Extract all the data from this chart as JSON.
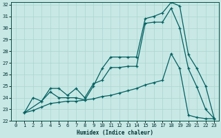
{
  "xlabel": "Humidex (Indice chaleur)",
  "bg_color": "#c8e8e5",
  "grid_color": "#aad4d0",
  "line_color": "#006060",
  "xlim": [
    -0.5,
    23.5
  ],
  "ylim": [
    22,
    32.2
  ],
  "yticks": [
    22,
    23,
    24,
    25,
    26,
    27,
    28,
    29,
    30,
    31,
    32
  ],
  "xticks": [
    0,
    1,
    2,
    3,
    4,
    5,
    6,
    7,
    8,
    9,
    10,
    11,
    12,
    13,
    14,
    15,
    16,
    17,
    18,
    19,
    20,
    21,
    22,
    23
  ],
  "line1_x": [
    1,
    2,
    3,
    4,
    5,
    6,
    7,
    8,
    9,
    10,
    11,
    12,
    13,
    14,
    15,
    16,
    17,
    18,
    19,
    20,
    21,
    22,
    23
  ],
  "line1_y": [
    22.7,
    24.0,
    23.7,
    24.8,
    24.8,
    24.2,
    24.8,
    24.0,
    25.2,
    25.5,
    26.6,
    26.6,
    26.7,
    26.7,
    30.4,
    30.5,
    30.5,
    31.7,
    30.0,
    26.5,
    24.9,
    23.0,
    22.2
  ],
  "line2_x": [
    1,
    3,
    4,
    5,
    6,
    7,
    8,
    9,
    10,
    11,
    12,
    13,
    14,
    15,
    16,
    17,
    18,
    19,
    20,
    21,
    22,
    23
  ],
  "line2_y": [
    22.7,
    23.7,
    24.5,
    24.0,
    24.0,
    24.0,
    23.8,
    25.0,
    26.5,
    27.5,
    27.5,
    27.5,
    27.5,
    30.8,
    31.0,
    31.3,
    32.2,
    31.9,
    27.7,
    26.5,
    25.0,
    22.2
  ],
  "line3_x": [
    1,
    2,
    3,
    4,
    5,
    6,
    7,
    8,
    9,
    10,
    11,
    12,
    13,
    14,
    15,
    16,
    17,
    18,
    19,
    20,
    21,
    22,
    23
  ],
  "line3_y": [
    22.7,
    22.9,
    23.2,
    23.5,
    23.6,
    23.7,
    23.7,
    23.8,
    23.9,
    24.1,
    24.2,
    24.4,
    24.6,
    24.8,
    25.1,
    25.3,
    25.5,
    27.8,
    26.5,
    22.5,
    22.3,
    22.2,
    22.2
  ]
}
